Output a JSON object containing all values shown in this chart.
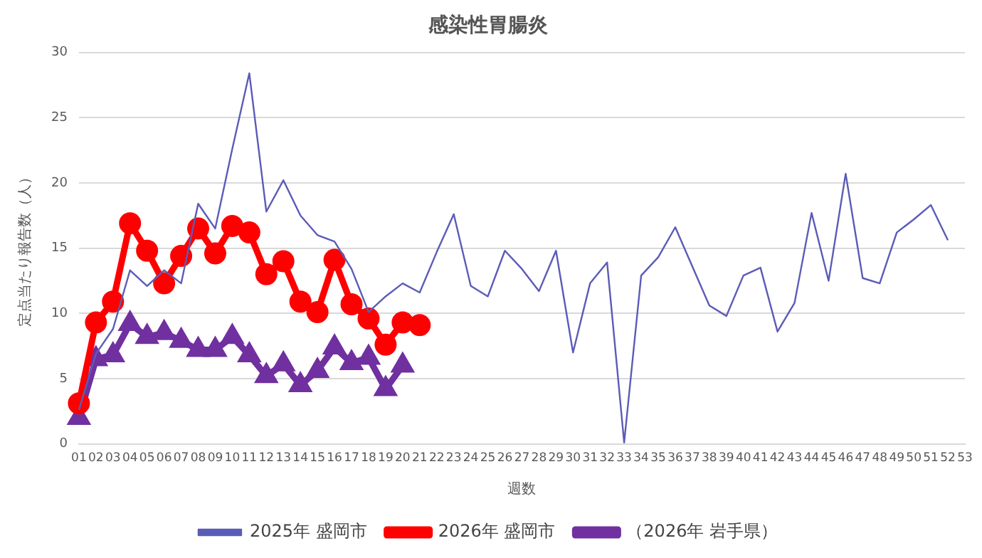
{
  "chart_data": {
    "type": "line",
    "title": "感染性胃腸炎",
    "xlabel": "週数",
    "ylabel": "定点当たり報告数（人）",
    "categories": [
      "01",
      "02",
      "03",
      "04",
      "05",
      "06",
      "07",
      "08",
      "09",
      "10",
      "11",
      "12",
      "13",
      "14",
      "15",
      "16",
      "17",
      "18",
      "19",
      "20",
      "21",
      "22",
      "23",
      "24",
      "25",
      "26",
      "27",
      "28",
      "29",
      "30",
      "31",
      "32",
      "33",
      "34",
      "35",
      "36",
      "37",
      "38",
      "39",
      "40",
      "41",
      "42",
      "43",
      "44",
      "45",
      "46",
      "47",
      "48",
      "49",
      "50",
      "51",
      "52",
      "53"
    ],
    "ylim": [
      0,
      30
    ],
    "yticks": [
      0,
      5,
      10,
      15,
      20,
      25,
      30
    ],
    "grid": "y",
    "legend": "bottom",
    "line_style": "solid",
    "series": [
      {
        "name": "2025年 盛岡市",
        "color": "#5b5bb8",
        "marker": "none",
        "values": [
          2.6,
          6.9,
          8.8,
          13.3,
          12.1,
          13.3,
          12.3,
          18.4,
          16.5,
          22.6,
          28.4,
          17.8,
          20.2,
          17.5,
          16.0,
          15.5,
          13.4,
          10.1,
          11.3,
          12.3,
          11.6,
          14.7,
          17.6,
          12.1,
          11.3,
          14.8,
          13.4,
          11.7,
          14.8,
          7.0,
          12.3,
          13.9,
          0.1,
          12.9,
          14.3,
          16.6,
          13.6,
          10.6,
          9.8,
          12.9,
          13.5,
          8.6,
          10.8,
          17.7,
          12.5,
          20.7,
          12.7,
          12.3,
          16.2,
          17.2,
          18.3,
          15.6,
          null
        ]
      },
      {
        "name": "2026年 盛岡市",
        "color": "#ff0000",
        "marker": "circle",
        "values": [
          3.1,
          9.3,
          10.9,
          16.9,
          14.8,
          12.3,
          14.4,
          16.5,
          14.6,
          16.7,
          16.2,
          13.0,
          14.0,
          10.9,
          10.1,
          14.1,
          10.7,
          9.6,
          7.6,
          9.3,
          9.1,
          null,
          null,
          null,
          null,
          null,
          null,
          null,
          null,
          null,
          null,
          null,
          null,
          null,
          null,
          null,
          null,
          null,
          null,
          null,
          null,
          null,
          null,
          null,
          null,
          null,
          null,
          null,
          null,
          null,
          null,
          null,
          null
        ]
      },
      {
        "name": "（2026年 岩手県）",
        "color": "#7030a0",
        "marker": "triangle",
        "values": [
          2.0,
          6.5,
          6.8,
          9.2,
          8.2,
          8.5,
          7.9,
          7.2,
          7.2,
          8.2,
          6.8,
          5.2,
          6.1,
          4.5,
          5.6,
          7.4,
          6.2,
          6.6,
          4.2,
          6.0,
          null,
          null,
          null,
          null,
          null,
          null,
          null,
          null,
          null,
          null,
          null,
          null,
          null,
          null,
          null,
          null,
          null,
          null,
          null,
          null,
          null,
          null,
          null,
          null,
          null,
          null,
          null,
          null,
          null,
          null,
          null,
          null,
          null
        ]
      }
    ]
  }
}
